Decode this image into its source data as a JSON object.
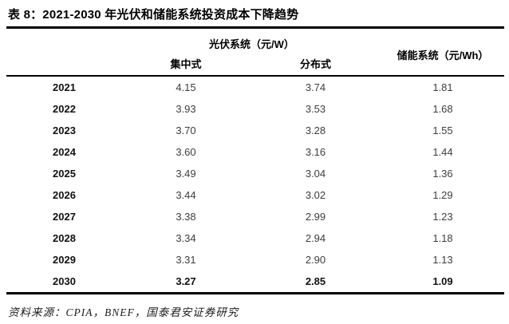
{
  "title": "表 8：2021-2030 年光伏和储能系统投资成本下降趋势",
  "table": {
    "header": {
      "pv_group": "光伏系统（元/W）",
      "centralized": "集中式",
      "distributed": "分布式",
      "storage": "储能系统（元/Wh）"
    },
    "rows": [
      {
        "year": "2021",
        "centralized": "4.15",
        "distributed": "3.74",
        "storage": "1.81"
      },
      {
        "year": "2022",
        "centralized": "3.93",
        "distributed": "3.53",
        "storage": "1.68"
      },
      {
        "year": "2023",
        "centralized": "3.70",
        "distributed": "3.28",
        "storage": "1.55"
      },
      {
        "year": "2024",
        "centralized": "3.60",
        "distributed": "3.16",
        "storage": "1.44"
      },
      {
        "year": "2025",
        "centralized": "3.49",
        "distributed": "3.04",
        "storage": "1.36"
      },
      {
        "year": "2026",
        "centralized": "3.44",
        "distributed": "3.02",
        "storage": "1.29"
      },
      {
        "year": "2027",
        "centralized": "3.38",
        "distributed": "2.99",
        "storage": "1.23"
      },
      {
        "year": "2028",
        "centralized": "3.34",
        "distributed": "2.94",
        "storage": "1.18"
      },
      {
        "year": "2029",
        "centralized": "3.31",
        "distributed": "2.90",
        "storage": "1.13"
      },
      {
        "year": "2030",
        "centralized": "3.27",
        "distributed": "2.85",
        "storage": "1.09"
      }
    ]
  },
  "source": "资料来源：CPIA，BNEF，国泰君安证券研究",
  "colors": {
    "rule": "#000000",
    "title_text": "#000000",
    "value_text": "#3d3d3d",
    "background": "#ffffff"
  }
}
